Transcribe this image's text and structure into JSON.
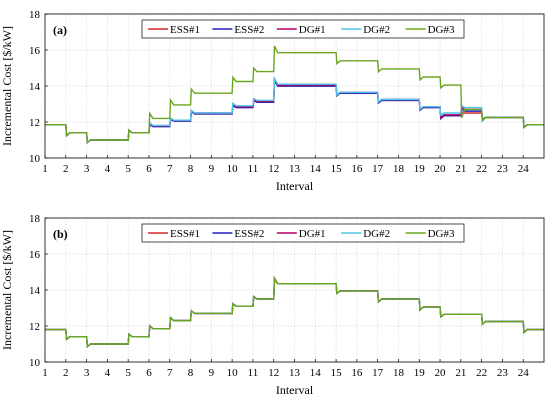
{
  "chart_data": [
    {
      "type": "line",
      "panel_label": "(a)",
      "xlabel": "Interval",
      "ylabel": "Incremental Cost [$/kW]",
      "xlim": [
        1,
        25
      ],
      "ylim": [
        10,
        18
      ],
      "xticks": [
        1,
        2,
        3,
        4,
        5,
        6,
        7,
        8,
        9,
        10,
        11,
        12,
        13,
        14,
        15,
        16,
        17,
        18,
        19,
        20,
        21,
        22,
        23,
        24
      ],
      "yticks": [
        10,
        12,
        14,
        16,
        18
      ],
      "grid": true,
      "legend_position": "top",
      "series": [
        {
          "name": "ESS#1",
          "color": "#d62728",
          "values": [
            11.85,
            11.4,
            11.0,
            11.0,
            11.4,
            11.75,
            12.05,
            12.45,
            12.45,
            12.8,
            13.1,
            14.0,
            14.0,
            14.0,
            13.6,
            13.6,
            13.2,
            13.2,
            12.8,
            12.35,
            12.5,
            12.25,
            12.25,
            11.85
          ]
        },
        {
          "name": "ESS#2",
          "color": "#1f1fbf",
          "values": [
            11.85,
            11.4,
            11.0,
            11.0,
            11.4,
            11.75,
            12.05,
            12.45,
            12.45,
            12.8,
            13.1,
            14.0,
            14.0,
            14.0,
            13.6,
            13.6,
            13.2,
            13.2,
            12.8,
            12.35,
            12.6,
            12.25,
            12.25,
            11.85
          ]
        },
        {
          "name": "DG#1",
          "color": "#b0006a",
          "values": [
            11.85,
            11.4,
            11.0,
            11.0,
            11.4,
            11.8,
            12.1,
            12.5,
            12.5,
            12.85,
            13.15,
            14.05,
            14.05,
            14.05,
            13.65,
            13.65,
            13.25,
            13.25,
            12.85,
            12.4,
            12.7,
            12.25,
            12.25,
            11.85
          ]
        },
        {
          "name": "DG#2",
          "color": "#4fc3e8",
          "values": [
            11.85,
            11.4,
            11.0,
            11.0,
            11.4,
            11.8,
            12.1,
            12.5,
            12.5,
            12.9,
            13.2,
            14.1,
            14.1,
            14.1,
            13.65,
            13.65,
            13.25,
            13.25,
            12.85,
            12.5,
            12.8,
            12.25,
            12.25,
            11.85
          ]
        },
        {
          "name": "DG#3",
          "color": "#6aa51e",
          "values": [
            11.85,
            11.4,
            11.0,
            11.0,
            11.4,
            12.2,
            12.95,
            13.6,
            13.6,
            14.25,
            14.8,
            15.85,
            15.85,
            15.85,
            15.4,
            15.4,
            14.95,
            14.95,
            14.5,
            14.05,
            12.7,
            12.25,
            12.25,
            11.85
          ]
        }
      ]
    },
    {
      "type": "line",
      "panel_label": "(b)",
      "xlabel": "Interval",
      "ylabel": "Incremental Cost [$/kW]",
      "xlim": [
        1,
        25
      ],
      "ylim": [
        10,
        18
      ],
      "xticks": [
        1,
        2,
        3,
        4,
        5,
        6,
        7,
        8,
        9,
        10,
        11,
        12,
        13,
        14,
        15,
        16,
        17,
        18,
        19,
        20,
        21,
        22,
        23,
        24
      ],
      "yticks": [
        10,
        12,
        14,
        16,
        18
      ],
      "grid": true,
      "legend_position": "top",
      "series": [
        {
          "name": "ESS#1",
          "color": "#d62728",
          "values": [
            11.8,
            11.4,
            11.0,
            11.0,
            11.4,
            11.85,
            12.3,
            12.7,
            12.7,
            13.1,
            13.5,
            14.35,
            14.35,
            14.35,
            13.95,
            13.95,
            13.5,
            13.5,
            13.05,
            12.65,
            12.65,
            12.25,
            12.25,
            11.8
          ]
        },
        {
          "name": "ESS#2",
          "color": "#1f1fbf",
          "values": [
            11.8,
            11.4,
            11.0,
            11.0,
            11.4,
            11.85,
            12.3,
            12.7,
            12.7,
            13.1,
            13.5,
            14.35,
            14.35,
            14.35,
            13.95,
            13.95,
            13.5,
            13.5,
            13.05,
            12.65,
            12.65,
            12.25,
            12.25,
            11.8
          ]
        },
        {
          "name": "DG#1",
          "color": "#b0006a",
          "values": [
            11.8,
            11.4,
            11.0,
            11.0,
            11.4,
            11.85,
            12.3,
            12.7,
            12.7,
            13.1,
            13.5,
            14.35,
            14.35,
            14.35,
            13.95,
            13.95,
            13.5,
            13.5,
            13.05,
            12.65,
            12.65,
            12.25,
            12.25,
            11.8
          ]
        },
        {
          "name": "DG#2",
          "color": "#4fc3e8",
          "values": [
            11.8,
            11.4,
            11.0,
            11.0,
            11.4,
            11.85,
            12.3,
            12.7,
            12.7,
            13.1,
            13.5,
            14.35,
            14.35,
            14.35,
            13.95,
            13.95,
            13.5,
            13.5,
            13.05,
            12.65,
            12.65,
            12.25,
            12.25,
            11.8
          ]
        },
        {
          "name": "DG#3",
          "color": "#6aa51e",
          "values": [
            11.8,
            11.4,
            11.0,
            11.0,
            11.4,
            11.85,
            12.3,
            12.7,
            12.7,
            13.1,
            13.5,
            14.35,
            14.35,
            14.35,
            13.95,
            13.95,
            13.5,
            13.5,
            13.05,
            12.65,
            12.65,
            12.25,
            12.25,
            11.8
          ]
        }
      ]
    }
  ]
}
